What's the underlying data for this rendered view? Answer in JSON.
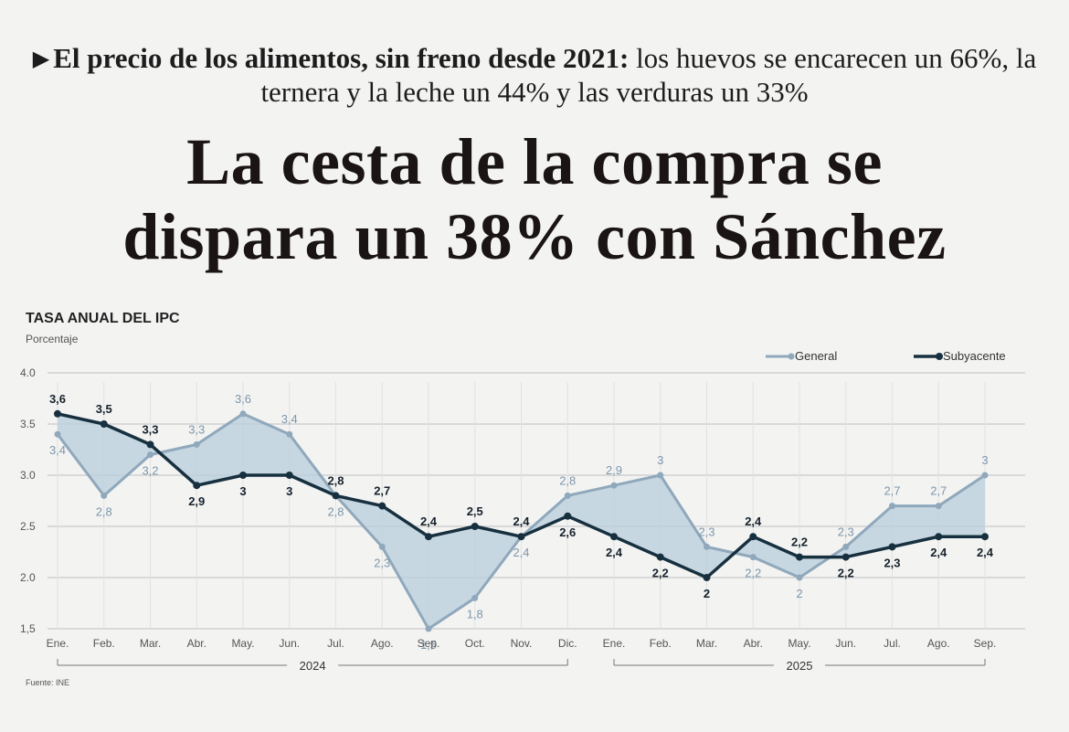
{
  "article": {
    "kicker_lead": "El precio de los alimentos, sin freno desde 2021:",
    "kicker_rest": "los huevos se encarecen un 66%, la ternera y la leche un 44% y las verduras un 33%",
    "headline_line1": "La cesta de la compra se",
    "headline_line2": "dispara un 38% con Sánchez"
  },
  "source": "Fuente: INE",
  "colors": {
    "general": "#8fa8bb",
    "subyacente": "#17303f",
    "fill": "#b8cddb"
  },
  "chart_data": {
    "type": "line",
    "title": "TASA ANUAL DEL IPC",
    "subtitle": "Porcentaje",
    "categories": [
      "Ene.",
      "Feb.",
      "Mar.",
      "Abr.",
      "May.",
      "Jun.",
      "Jul.",
      "Ago.",
      "Sep.",
      "Oct.",
      "Nov.",
      "Dic.",
      "Ene.",
      "Feb.",
      "Mar.",
      "Abr.",
      "May.",
      "Jun.",
      "Jul.",
      "Ago.",
      "Sep."
    ],
    "years": [
      {
        "label": "2024",
        "from": 0,
        "to": 11
      },
      {
        "label": "2025",
        "from": 12,
        "to": 20
      }
    ],
    "ylim": [
      1.5,
      4.0
    ],
    "yticks": [
      "1,5",
      "2.0",
      "2.5",
      "3.0",
      "3.5",
      "4.0"
    ],
    "ytick_values": [
      1.5,
      2.0,
      2.5,
      3.0,
      3.5,
      4.0
    ],
    "grid": true,
    "legend_position": "top-right",
    "series": [
      {
        "name": "General",
        "values": [
          3.4,
          2.8,
          3.2,
          3.3,
          3.6,
          3.4,
          2.8,
          2.3,
          1.5,
          1.8,
          2.4,
          2.8,
          2.9,
          3.0,
          2.3,
          2.2,
          2.0,
          2.3,
          2.7,
          2.7,
          3.0
        ],
        "labels": [
          "3,4",
          "2,8",
          "3,2",
          "3,3",
          "3,6",
          "3,4",
          "2,8",
          "2,3",
          "1,5",
          "1,8",
          "2,4",
          "2,8",
          "2,9",
          "3",
          "2,3",
          "2,2",
          "2",
          "2,3",
          "2,7",
          "2,7",
          "3"
        ]
      },
      {
        "name": "Subyacente",
        "values": [
          3.6,
          3.5,
          3.3,
          2.9,
          3.0,
          3.0,
          2.8,
          2.7,
          2.4,
          2.5,
          2.4,
          2.6,
          2.4,
          2.2,
          2.0,
          2.4,
          2.2,
          2.2,
          2.3,
          2.4,
          2.4
        ],
        "labels": [
          "3,6",
          "3,5",
          "3,3",
          "2,9",
          "3",
          "3",
          "2,8",
          "2,7",
          "2,4",
          "2,5",
          "2,4",
          "2,6",
          "2,4",
          "2,2",
          "2",
          "2,4",
          "2,2",
          "2,2",
          "2,3",
          "2,4",
          "2,4"
        ]
      }
    ]
  }
}
